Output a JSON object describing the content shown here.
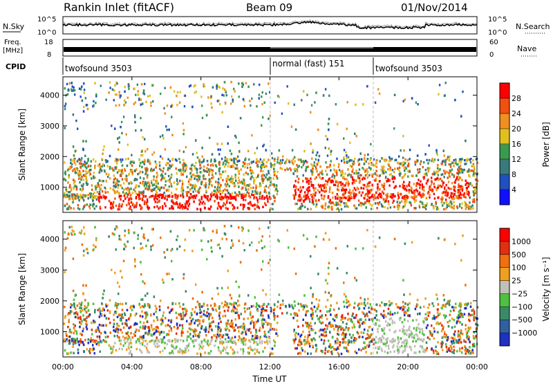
{
  "header": {
    "radar": "Rankin Inlet (fitACF)",
    "beam": "Beam 09",
    "date": "01/Nov/2014"
  },
  "noise_panel": {
    "left_label": "N.Sky",
    "right_label": "N.Search",
    "ticks_left": [
      "10^5",
      "10^0"
    ],
    "ticks_right": [
      "10^5",
      "10^0"
    ]
  },
  "freq_panel": {
    "left_label": "Freq.",
    "left_unit": "[MHz]",
    "ticks_left": [
      "18",
      "8"
    ],
    "right_label": "Nave",
    "ticks_right": [
      "60",
      "0"
    ]
  },
  "cpid": {
    "label": "CPID",
    "segments": [
      {
        "name": "twofsound 3503",
        "start_h": 0,
        "end_h": 12
      },
      {
        "name": "normal (fast) 151",
        "start_h": 12,
        "end_h": 18
      },
      {
        "name": "twofsound 3503",
        "start_h": 18,
        "end_h": 24
      }
    ]
  },
  "time_axis": {
    "label": "Time UT",
    "ticks": [
      "00:00",
      "04:00",
      "08:00",
      "12:00",
      "16:00",
      "20:00",
      "00:00"
    ]
  },
  "chart_data": [
    {
      "type": "heatmap",
      "panel": "power",
      "ylabel": "Slant Range [km]",
      "y_ticks": [
        1000,
        2000,
        3000,
        4000
      ],
      "ylim": [
        180,
        4600
      ],
      "x_range_hours": [
        0,
        24
      ],
      "colorbar": {
        "label": "Power [dB]",
        "ticks": [
          "4",
          "8",
          "12",
          "16",
          "20",
          "24",
          "28"
        ],
        "colors": [
          "#1010ff",
          "#2050c0",
          "#3a7a7a",
          "#3a9a50",
          "#e0c020",
          "#f09020",
          "#f05010",
          "#ff0000"
        ]
      }
    },
    {
      "type": "heatmap",
      "panel": "velocity",
      "ylabel": "Slant Range [km]",
      "y_ticks": [
        1000,
        2000,
        3000,
        4000
      ],
      "ylim": [
        180,
        4600
      ],
      "x_range_hours": [
        0,
        24
      ],
      "colorbar": {
        "label": "Velocity [m s⁻¹]",
        "ticks": [
          "1000",
          "500",
          "100",
          "25",
          "−25",
          "−100",
          "−500",
          "−1000"
        ],
        "colors": [
          "#2030c0",
          "#3060a0",
          "#3a8a6a",
          "#50c040",
          "#c0c0b8",
          "#f0a020",
          "#f07010",
          "#e03010",
          "#ff0000"
        ]
      }
    }
  ]
}
